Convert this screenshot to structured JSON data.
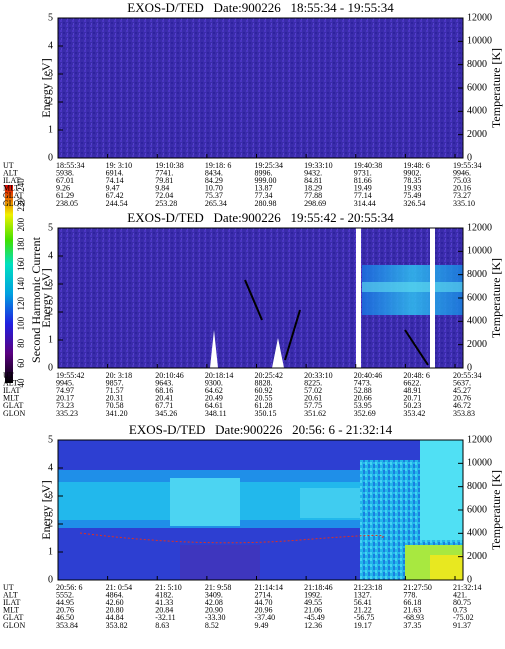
{
  "colorbar": {
    "ticks": [
      40,
      60,
      80,
      100,
      120,
      140,
      160,
      180,
      200,
      220,
      240
    ],
    "label": "Second Harmonic Current"
  },
  "chart_data": [
    {
      "type": "heatmap",
      "title": "EXOS-D/TED   Date:900226   18:55:34 - 19:55:34",
      "ylabel": "Energy [eV]",
      "y2label": "Temperature [K]",
      "ylim": [
        0,
        5
      ],
      "yticks": [
        0,
        1,
        2,
        3,
        4,
        5
      ],
      "y2lim": [
        0,
        12000
      ],
      "y2ticks": [
        0,
        2000,
        4000,
        6000,
        8000,
        10000,
        12000
      ],
      "rows": [
        {
          "label": "UT",
          "values": [
            "18:55:34",
            "19: 3:10",
            "19:10:38",
            "19:18: 6",
            "19:25:34",
            "19:33:10",
            "19:40:38",
            "19:48: 6",
            "19:55:34"
          ]
        },
        {
          "label": "ALT",
          "values": [
            "5938.",
            "6914.",
            "7741.",
            "8434.",
            "8996.",
            "9432.",
            "9731.",
            "9902.",
            "9946."
          ]
        },
        {
          "label": "ILAT",
          "values": [
            "67.01",
            "74.14",
            "79.81",
            "84.29",
            "999.00",
            "84.81",
            "81.66",
            "78.35",
            "75.03"
          ]
        },
        {
          "label": "MLT",
          "values": [
            "9.26",
            "9.47",
            "9.84",
            "10.70",
            "13.87",
            "18.29",
            "19.49",
            "19.93",
            "20.16"
          ]
        },
        {
          "label": "GLAT",
          "values": [
            "61.29",
            "67.42",
            "72.04",
            "75.37",
            "77.34",
            "77.88",
            "77.14",
            "75.49",
            "73.27"
          ]
        },
        {
          "label": "GLON",
          "values": [
            "238.05",
            "244.54",
            "253.28",
            "265.34",
            "280.98",
            "298.69",
            "314.44",
            "326.54",
            "335.10"
          ]
        }
      ]
    },
    {
      "type": "heatmap",
      "title": "EXOS-D/TED   Date:900226   19:55:42 - 20:55:34",
      "ylabel": "Energy [eV]",
      "y2label": "Temperature [K]",
      "ylim": [
        0,
        5
      ],
      "yticks": [
        0,
        1,
        2,
        3,
        4,
        5
      ],
      "y2lim": [
        0,
        12000
      ],
      "y2ticks": [
        0,
        2000,
        4000,
        6000,
        8000,
        10000,
        12000
      ],
      "rows": [
        {
          "label": "UT",
          "values": [
            "19:55:42",
            "20: 3:18",
            "20:10:46",
            "20:18:14",
            "20:25:42",
            "20:33:10",
            "20:40:46",
            "20:48: 6",
            "20:55:34"
          ]
        },
        {
          "label": "ALT",
          "values": [
            "9945.",
            "9857.",
            "9643.",
            "9300.",
            "8828.",
            "8225.",
            "7473.",
            "6622.",
            "5637."
          ]
        },
        {
          "label": "ILAT",
          "values": [
            "74.97",
            "71.57",
            "68.16",
            "64.62",
            "60.92",
            "57.02",
            "52.88",
            "48.91",
            "45.27"
          ]
        },
        {
          "label": "MLT",
          "values": [
            "20.17",
            "20.31",
            "20.41",
            "20.49",
            "20.55",
            "20.61",
            "20.66",
            "20.71",
            "20.76"
          ]
        },
        {
          "label": "GLAT",
          "values": [
            "73.23",
            "70.58",
            "67.71",
            "64.61",
            "61.28",
            "57.75",
            "53.95",
            "50.23",
            "46.72"
          ]
        },
        {
          "label": "GLON",
          "values": [
            "335.23",
            "341.20",
            "345.26",
            "348.11",
            "350.15",
            "351.62",
            "352.69",
            "353.42",
            "353.83"
          ]
        }
      ]
    },
    {
      "type": "heatmap",
      "title": "EXOS-D/TED   Date:900226   20:56: 6 - 21:32:14",
      "ylabel": "Energy [eV]",
      "y2label": "Temperature [K]",
      "ylim": [
        0,
        5
      ],
      "yticks": [
        0,
        1,
        2,
        3,
        4,
        5
      ],
      "y2lim": [
        0,
        12000
      ],
      "y2ticks": [
        0,
        2000,
        4000,
        6000,
        8000,
        10000,
        12000
      ],
      "rows": [
        {
          "label": "UT",
          "values": [
            "20:56: 6",
            "21: 0:54",
            "21: 5:10",
            "21: 9:58",
            "21:14:14",
            "21:18:46",
            "21:23:18",
            "21:27:50",
            "21:32:14"
          ]
        },
        {
          "label": "ALT",
          "values": [
            "5552.",
            "4864.",
            "4182.",
            "3409.",
            "2714.",
            "1992.",
            "1327.",
            "778.",
            "421."
          ]
        },
        {
          "label": "ILAT",
          "values": [
            "44.95",
            "42.60",
            "41.33",
            "42.08",
            "44.70",
            "49.55",
            "56.41",
            "66.18",
            "80.75"
          ]
        },
        {
          "label": "MLT",
          "values": [
            "20.76",
            "20.80",
            "20.84",
            "20.90",
            "20.96",
            "21.06",
            "21.22",
            "21.63",
            "0.73"
          ]
        },
        {
          "label": "GLAT",
          "values": [
            "46.50",
            "44.84",
            "-32.11",
            "-33.30",
            "-37.40",
            "-45.49",
            "-56.75",
            "-68.93",
            "-75.02"
          ]
        },
        {
          "label": "GLON",
          "values": [
            "353.84",
            "353.82",
            "8.63",
            "8.52",
            "9.49",
            "12.36",
            "19.17",
            "37.35",
            "91.37"
          ]
        }
      ]
    }
  ]
}
